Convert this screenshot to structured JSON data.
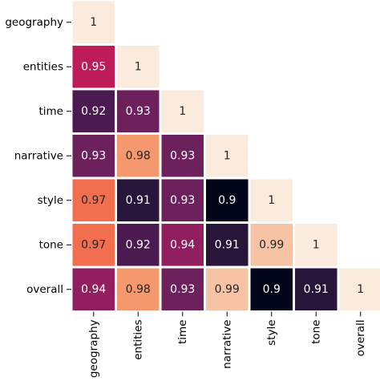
{
  "chart_data": {
    "type": "heatmap",
    "title": "",
    "xlabel": "",
    "ylabel": "",
    "rows": [
      "geography",
      "entities",
      "time",
      "narrative",
      "style",
      "tone",
      "overall"
    ],
    "columns": [
      "geography",
      "entities",
      "time",
      "narrative",
      "style",
      "tone",
      "overall"
    ],
    "values": [
      [
        1,
        null,
        null,
        null,
        null,
        null,
        null
      ],
      [
        0.95,
        1,
        null,
        null,
        null,
        null,
        null
      ],
      [
        0.92,
        0.93,
        1,
        null,
        null,
        null,
        null
      ],
      [
        0.93,
        0.98,
        0.93,
        1,
        null,
        null,
        null
      ],
      [
        0.97,
        0.91,
        0.93,
        0.9,
        1,
        null,
        null
      ],
      [
        0.97,
        0.92,
        0.94,
        0.91,
        0.99,
        1,
        null
      ],
      [
        0.94,
        0.98,
        0.93,
        0.99,
        0.9,
        0.91,
        1
      ]
    ],
    "mask": "upper-triangle",
    "colormap": "rocket",
    "value_range": [
      0.9,
      1.0
    ],
    "cell_border_color": "#ffffff"
  }
}
